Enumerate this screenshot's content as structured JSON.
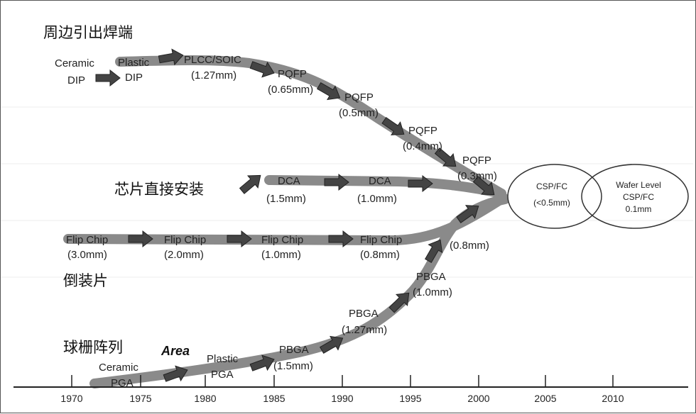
{
  "title": "周边引出焊端",
  "categories": {
    "peripheral": "周边引出焊端",
    "chip_direct": "芯片直接安装",
    "flip_chip": "倒装片",
    "ball_grid": "球栅阵列"
  },
  "peripheral_labels": {
    "ceramic_dip_1": "Ceramic",
    "ceramic_dip_2": "DIP",
    "plastic_dip_1": "Plastic",
    "plastic_dip_2": "DIP",
    "plcc_1": "PLCC/SOIC",
    "plcc_2": "(1.27mm)",
    "pqfp065_1": "PQFP",
    "pqfp065_2": "(0.65mm)",
    "pqfp05_1": "PQFP",
    "pqfp05_2": "(0.5mm)",
    "pqfp04_1": "PQFP",
    "pqfp04_2": "(0.4mm)",
    "pqfp03_1": "PQFP",
    "pqfp03_2": "(0.3mm)"
  },
  "dca_labels": {
    "dca15_1": "DCA",
    "dca15_2": "(1.5mm)",
    "dca10_1": "DCA",
    "dca10_2": "(1.0mm)"
  },
  "flip_labels": {
    "fc30_1": "Flip Chip",
    "fc30_2": "(3.0mm)",
    "fc20_1": "Flip Chip",
    "fc20_2": "(2.0mm)",
    "fc10_1": "Flip Chip",
    "fc10_2": "(1.0mm)",
    "fc08_1": "Flip Chip",
    "fc08_2": "(0.8mm)"
  },
  "area_labels": {
    "ceramic_pga_1": "Ceramic",
    "ceramic_pga_2": "PGA",
    "area": "Area",
    "plastic_pga_1": "Plastic",
    "plastic_pga_2": "PGA",
    "pbga15_1": "PBGA",
    "pbga15_2": "(1.5mm)",
    "pbga127_1": "PBGA",
    "pbga127_2": "(1.27mm)",
    "pbga10_1": "PBGA",
    "pbga10_2": "(1.0mm)",
    "pbga08": "(0.8mm)"
  },
  "targets": {
    "csp_1": "CSP/FC",
    "csp_2": "(<0.5mm)",
    "wafer_1": "Wafer Level",
    "wafer_2": "CSP/FC",
    "wafer_3": "0.1mm"
  },
  "axis": {
    "years": [
      "1970",
      "1975",
      "1980",
      "1985",
      "1990",
      "1995",
      "2000",
      "2005",
      "2010"
    ]
  },
  "colors": {
    "band": "#8a8a8a",
    "arrow": "#444444",
    "text": "#222222"
  }
}
